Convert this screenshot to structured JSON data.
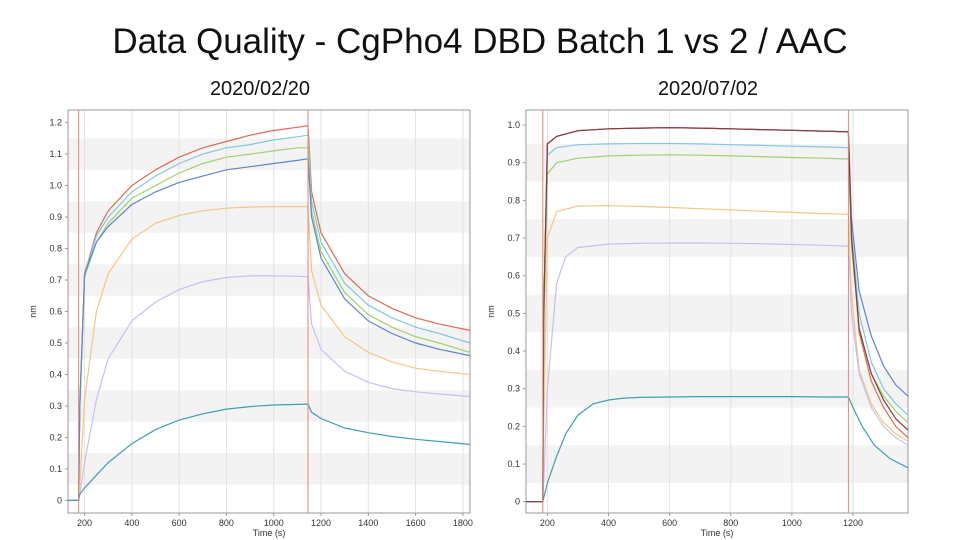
{
  "slide": {
    "title": "Data Quality - CgPho4 DBD Batch 1 vs 2 / AAC"
  },
  "colors": {
    "stripe": "#f3f3f3",
    "grid": "#e2e2e2",
    "phase_line": "#e8837a",
    "axis": "#9a9a9a",
    "series": [
      "#dc6b53",
      "#7ec9e0",
      "#9ed36a",
      "#5d84cf",
      "#f5c680",
      "#c6bff2",
      "#3f9fb2",
      "#8b3a3a"
    ]
  },
  "chart_data": [
    {
      "type": "line",
      "title": "2020/02/20",
      "xlabel": "Time (s)",
      "ylabel": "nm",
      "xlim": [
        130,
        1830
      ],
      "ylim": [
        -0.04,
        1.24
      ],
      "xticks": [
        200,
        400,
        600,
        800,
        1000,
        1200,
        1400,
        1600,
        1800
      ],
      "yticks": [
        0,
        0.1,
        0.2,
        0.3,
        0.4,
        0.5,
        0.6,
        0.7,
        0.8,
        0.9,
        1.0,
        1.1,
        1.2
      ],
      "ytick_labels": [
        "0",
        "0.1",
        "0.2",
        "0.3",
        "0.4",
        "0.5",
        "0.6",
        "0.7",
        "0.8",
        "0.9",
        "1.0",
        "1.1",
        "1.2"
      ],
      "grid": true,
      "vlines": [
        175,
        1145
      ],
      "series": [
        {
          "x": [
            130,
            175,
            180,
            200,
            250,
            300,
            400,
            500,
            600,
            700,
            800,
            900,
            1000,
            1100,
            1145,
            1160,
            1200,
            1300,
            1400,
            1500,
            1600,
            1700,
            1830
          ],
          "y": [
            0,
            0,
            0.3,
            0.72,
            0.85,
            0.92,
            1.0,
            1.05,
            1.09,
            1.12,
            1.14,
            1.16,
            1.175,
            1.185,
            1.19,
            0.98,
            0.85,
            0.72,
            0.65,
            0.61,
            0.58,
            0.56,
            0.54
          ]
        },
        {
          "x": [
            130,
            175,
            180,
            200,
            250,
            300,
            400,
            500,
            600,
            700,
            800,
            900,
            1000,
            1100,
            1145,
            1160,
            1200,
            1300,
            1400,
            1500,
            1600,
            1700,
            1830
          ],
          "y": [
            0,
            0,
            0.3,
            0.72,
            0.84,
            0.9,
            0.98,
            1.03,
            1.07,
            1.1,
            1.12,
            1.13,
            1.145,
            1.155,
            1.16,
            0.95,
            0.82,
            0.69,
            0.62,
            0.58,
            0.55,
            0.53,
            0.5
          ]
        },
        {
          "x": [
            130,
            175,
            180,
            200,
            250,
            300,
            400,
            500,
            600,
            700,
            800,
            900,
            1000,
            1100,
            1145,
            1160,
            1200,
            1300,
            1400,
            1500,
            1600,
            1700,
            1830
          ],
          "y": [
            0,
            0,
            0.3,
            0.71,
            0.82,
            0.88,
            0.96,
            1.0,
            1.04,
            1.07,
            1.09,
            1.1,
            1.11,
            1.12,
            1.12,
            0.92,
            0.79,
            0.66,
            0.59,
            0.55,
            0.52,
            0.5,
            0.47
          ]
        },
        {
          "x": [
            130,
            175,
            180,
            200,
            250,
            300,
            400,
            500,
            600,
            700,
            800,
            900,
            1000,
            1100,
            1145,
            1160,
            1200,
            1300,
            1400,
            1500,
            1600,
            1700,
            1830
          ],
          "y": [
            0,
            0,
            0.3,
            0.72,
            0.82,
            0.87,
            0.94,
            0.98,
            1.01,
            1.03,
            1.05,
            1.06,
            1.07,
            1.08,
            1.085,
            0.9,
            0.77,
            0.64,
            0.57,
            0.53,
            0.5,
            0.48,
            0.46
          ]
        },
        {
          "x": [
            130,
            175,
            180,
            200,
            250,
            300,
            400,
            500,
            600,
            700,
            800,
            900,
            1000,
            1100,
            1145,
            1160,
            1200,
            1300,
            1400,
            1500,
            1600,
            1700,
            1830
          ],
          "y": [
            0,
            0,
            0.05,
            0.32,
            0.6,
            0.72,
            0.83,
            0.88,
            0.905,
            0.92,
            0.928,
            0.932,
            0.933,
            0.933,
            0.933,
            0.73,
            0.62,
            0.52,
            0.47,
            0.44,
            0.42,
            0.41,
            0.4
          ]
        },
        {
          "x": [
            130,
            175,
            180,
            200,
            250,
            300,
            400,
            500,
            600,
            700,
            800,
            900,
            1000,
            1100,
            1145,
            1160,
            1200,
            1300,
            1400,
            1500,
            1600,
            1700,
            1830
          ],
          "y": [
            0,
            0,
            0.02,
            0.12,
            0.32,
            0.45,
            0.57,
            0.63,
            0.67,
            0.695,
            0.708,
            0.713,
            0.713,
            0.712,
            0.71,
            0.56,
            0.48,
            0.41,
            0.375,
            0.355,
            0.345,
            0.338,
            0.33
          ]
        },
        {
          "x": [
            130,
            175,
            180,
            200,
            250,
            300,
            400,
            500,
            600,
            700,
            800,
            900,
            1000,
            1100,
            1145,
            1160,
            1200,
            1300,
            1400,
            1500,
            1600,
            1700,
            1830
          ],
          "y": [
            0,
            0,
            0.02,
            0.04,
            0.08,
            0.12,
            0.18,
            0.225,
            0.255,
            0.275,
            0.29,
            0.298,
            0.303,
            0.305,
            0.306,
            0.28,
            0.26,
            0.23,
            0.215,
            0.203,
            0.194,
            0.187,
            0.178
          ]
        }
      ]
    },
    {
      "type": "line",
      "title": "2020/07/02",
      "xlabel": "Time (s)",
      "ylabel": "nm",
      "xlim": [
        130,
        1380
      ],
      "ylim": [
        -0.03,
        1.04
      ],
      "xticks": [
        200,
        400,
        600,
        800,
        1000,
        1200
      ],
      "yticks": [
        0,
        0.1,
        0.2,
        0.3,
        0.4,
        0.5,
        0.6,
        0.7,
        0.8,
        0.9,
        1.0
      ],
      "ytick_labels": [
        "0",
        "0.1",
        "0.2",
        "0.3",
        "0.4",
        "0.5",
        "0.6",
        "0.7",
        "0.8",
        "0.9",
        "1.0"
      ],
      "grid": true,
      "vlines": [
        185,
        1185
      ],
      "series": [
        {
          "x": [
            130,
            185,
            188,
            200,
            230,
            300,
            400,
            500,
            600,
            700,
            800,
            900,
            1000,
            1100,
            1185,
            1195,
            1220,
            1260,
            1300,
            1340,
            1380
          ],
          "y": [
            0,
            0,
            0.5,
            0.95,
            0.97,
            0.985,
            0.99,
            0.992,
            0.993,
            0.992,
            0.99,
            0.988,
            0.986,
            0.984,
            0.982,
            0.7,
            0.45,
            0.32,
            0.25,
            0.2,
            0.17
          ]
        },
        {
          "x": [
            130,
            185,
            188,
            200,
            230,
            300,
            400,
            500,
            600,
            700,
            800,
            900,
            1000,
            1100,
            1185,
            1195,
            1220,
            1260,
            1300,
            1340,
            1380
          ],
          "y": [
            0,
            0,
            0.5,
            0.92,
            0.94,
            0.948,
            0.95,
            0.951,
            0.951,
            0.95,
            0.948,
            0.946,
            0.944,
            0.942,
            0.94,
            0.72,
            0.5,
            0.37,
            0.3,
            0.26,
            0.23
          ]
        },
        {
          "x": [
            130,
            185,
            188,
            200,
            230,
            300,
            400,
            500,
            600,
            700,
            800,
            900,
            1000,
            1100,
            1185,
            1195,
            1220,
            1260,
            1300,
            1340,
            1380
          ],
          "y": [
            0,
            0,
            0.45,
            0.87,
            0.9,
            0.912,
            0.918,
            0.92,
            0.921,
            0.92,
            0.918,
            0.916,
            0.914,
            0.912,
            0.91,
            0.68,
            0.46,
            0.34,
            0.28,
            0.24,
            0.21
          ]
        },
        {
          "x": [
            130,
            185,
            188,
            200,
            230,
            300,
            400,
            500,
            600,
            700,
            800,
            900,
            1000,
            1100,
            1185,
            1195,
            1220,
            1260,
            1300,
            1340,
            1380
          ],
          "y": [
            0,
            0,
            0.5,
            0.95,
            0.97,
            0.985,
            0.99,
            0.992,
            0.993,
            0.992,
            0.99,
            0.988,
            0.986,
            0.984,
            0.982,
            0.75,
            0.56,
            0.44,
            0.36,
            0.31,
            0.28
          ]
        },
        {
          "x": [
            130,
            185,
            188,
            200,
            230,
            300,
            400,
            500,
            600,
            700,
            800,
            900,
            1000,
            1100,
            1185,
            1195,
            1220,
            1260,
            1300,
            1340,
            1380
          ],
          "y": [
            0,
            0,
            0.2,
            0.7,
            0.77,
            0.785,
            0.786,
            0.784,
            0.781,
            0.778,
            0.775,
            0.771,
            0.768,
            0.765,
            0.763,
            0.55,
            0.35,
            0.26,
            0.21,
            0.18,
            0.16
          ]
        },
        {
          "x": [
            130,
            185,
            188,
            200,
            230,
            260,
            300,
            400,
            500,
            600,
            700,
            800,
            900,
            1000,
            1100,
            1185,
            1195,
            1220,
            1260,
            1300,
            1340,
            1380
          ],
          "y": [
            0,
            0,
            0.05,
            0.3,
            0.58,
            0.65,
            0.675,
            0.684,
            0.686,
            0.687,
            0.687,
            0.686,
            0.685,
            0.683,
            0.681,
            0.678,
            0.5,
            0.34,
            0.25,
            0.2,
            0.17,
            0.15
          ]
        },
        {
          "x": [
            130,
            185,
            188,
            200,
            230,
            260,
            300,
            350,
            400,
            450,
            500,
            600,
            700,
            800,
            900,
            1000,
            1100,
            1185,
            1200,
            1230,
            1270,
            1320,
            1380
          ],
          "y": [
            0,
            0,
            0.01,
            0.05,
            0.12,
            0.18,
            0.23,
            0.26,
            0.27,
            0.275,
            0.277,
            0.278,
            0.279,
            0.279,
            0.279,
            0.279,
            0.278,
            0.278,
            0.25,
            0.2,
            0.15,
            0.115,
            0.09
          ]
        },
        {
          "x": [
            130,
            185,
            188,
            200,
            230,
            300,
            400,
            500,
            600,
            700,
            800,
            900,
            1000,
            1100,
            1185,
            1195,
            1220,
            1260,
            1300,
            1340,
            1380
          ],
          "y": [
            0,
            0,
            0.5,
            0.95,
            0.97,
            0.985,
            0.99,
            0.992,
            0.993,
            0.992,
            0.99,
            0.988,
            0.986,
            0.984,
            0.982,
            0.7,
            0.46,
            0.34,
            0.27,
            0.22,
            0.19
          ]
        }
      ]
    }
  ]
}
